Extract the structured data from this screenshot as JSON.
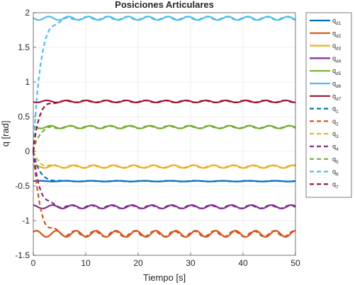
{
  "chart_data": {
    "type": "line",
    "title": "Posiciones Articulares",
    "xlabel": "Tiempo [s]",
    "ylabel": "q [rad]",
    "xlim": [
      0,
      50
    ],
    "ylim": [
      -1.5,
      2
    ],
    "xticks": [
      "0",
      "10",
      "20",
      "30",
      "40",
      "50"
    ],
    "yticks": [
      "-1.5",
      "-1",
      "-0.5",
      "0",
      "0.5",
      "1",
      "1.5",
      "2"
    ],
    "grid": true,
    "legend_position": "outside-right",
    "series": [
      {
        "label": "q",
        "sub": "d1",
        "color": "#0072BD",
        "dash": "solid",
        "offset": -0.43,
        "amplitude": 0.005,
        "period": 5,
        "phase": 0.0,
        "start": 0.0,
        "tau": 0.0
      },
      {
        "label": "q",
        "sub": "d2",
        "color": "#D95319",
        "dash": "solid",
        "offset": -1.19,
        "amplitude": 0.045,
        "period": 3.8,
        "phase": 0.6,
        "start": 0.0,
        "tau": 0.0
      },
      {
        "label": "q",
        "sub": "d3",
        "color": "#EDB120",
        "dash": "solid",
        "offset": -0.22,
        "amplitude": 0.02,
        "period": 3.8,
        "phase": 1.2,
        "start": 0.0,
        "tau": 0.0
      },
      {
        "label": "q",
        "sub": "d4",
        "color": "#7E2F8E",
        "dash": "solid",
        "offset": -0.8,
        "amplitude": 0.025,
        "period": 3.8,
        "phase": 1.8,
        "start": 0.0,
        "tau": 0.0
      },
      {
        "label": "q",
        "sub": "d5",
        "color": "#77AC30",
        "dash": "solid",
        "offset": 0.35,
        "amplitude": 0.02,
        "period": 3.8,
        "phase": 2.4,
        "start": 0.0,
        "tau": 0.0
      },
      {
        "label": "q",
        "sub": "d6",
        "color": "#4DBEEE",
        "dash": "solid",
        "offset": 1.92,
        "amplitude": 0.025,
        "period": 3.8,
        "phase": 3.0,
        "start": 0.0,
        "tau": 0.0
      },
      {
        "label": "q",
        "sub": "d7",
        "color": "#A2142F",
        "dash": "solid",
        "offset": 0.72,
        "amplitude": 0.015,
        "period": 3.8,
        "phase": 3.6,
        "start": 0.0,
        "tau": 0.0
      },
      {
        "label": "q",
        "sub": "1",
        "color": "#0072BD",
        "dash": "dashed",
        "offset": -0.43,
        "amplitude": 0.005,
        "period": 5,
        "phase": 0.5,
        "start": 0.0,
        "tau": 1.1
      },
      {
        "label": "q",
        "sub": "2",
        "color": "#D95319",
        "dash": "dashed",
        "offset": -1.19,
        "amplitude": 0.04,
        "period": 3.8,
        "phase": 1.1,
        "start": 0.0,
        "tau": 1.2
      },
      {
        "label": "q",
        "sub": "3",
        "color": "#EDB120",
        "dash": "dashed",
        "offset": -0.22,
        "amplitude": 0.018,
        "period": 3.8,
        "phase": 1.7,
        "start": 0.0,
        "tau": 1.0
      },
      {
        "label": "q",
        "sub": "4",
        "color": "#7E2F8E",
        "dash": "dashed",
        "offset": -0.8,
        "amplitude": 0.022,
        "period": 3.8,
        "phase": 2.3,
        "start": 0.0,
        "tau": 1.2
      },
      {
        "label": "q",
        "sub": "5",
        "color": "#77AC30",
        "dash": "dashed",
        "offset": 0.35,
        "amplitude": 0.018,
        "period": 3.8,
        "phase": 2.9,
        "start": 0.0,
        "tau": 1.0
      },
      {
        "label": "q",
        "sub": "6",
        "color": "#4DBEEE",
        "dash": "dashed",
        "offset": 1.92,
        "amplitude": 0.022,
        "period": 3.8,
        "phase": 3.5,
        "start": 0.0,
        "tau": 1.3
      },
      {
        "label": "q",
        "sub": "7",
        "color": "#A2142F",
        "dash": "dashed",
        "offset": 0.72,
        "amplitude": 0.014,
        "period": 3.8,
        "phase": 4.1,
        "start": 0.0,
        "tau": 1.0
      }
    ]
  }
}
